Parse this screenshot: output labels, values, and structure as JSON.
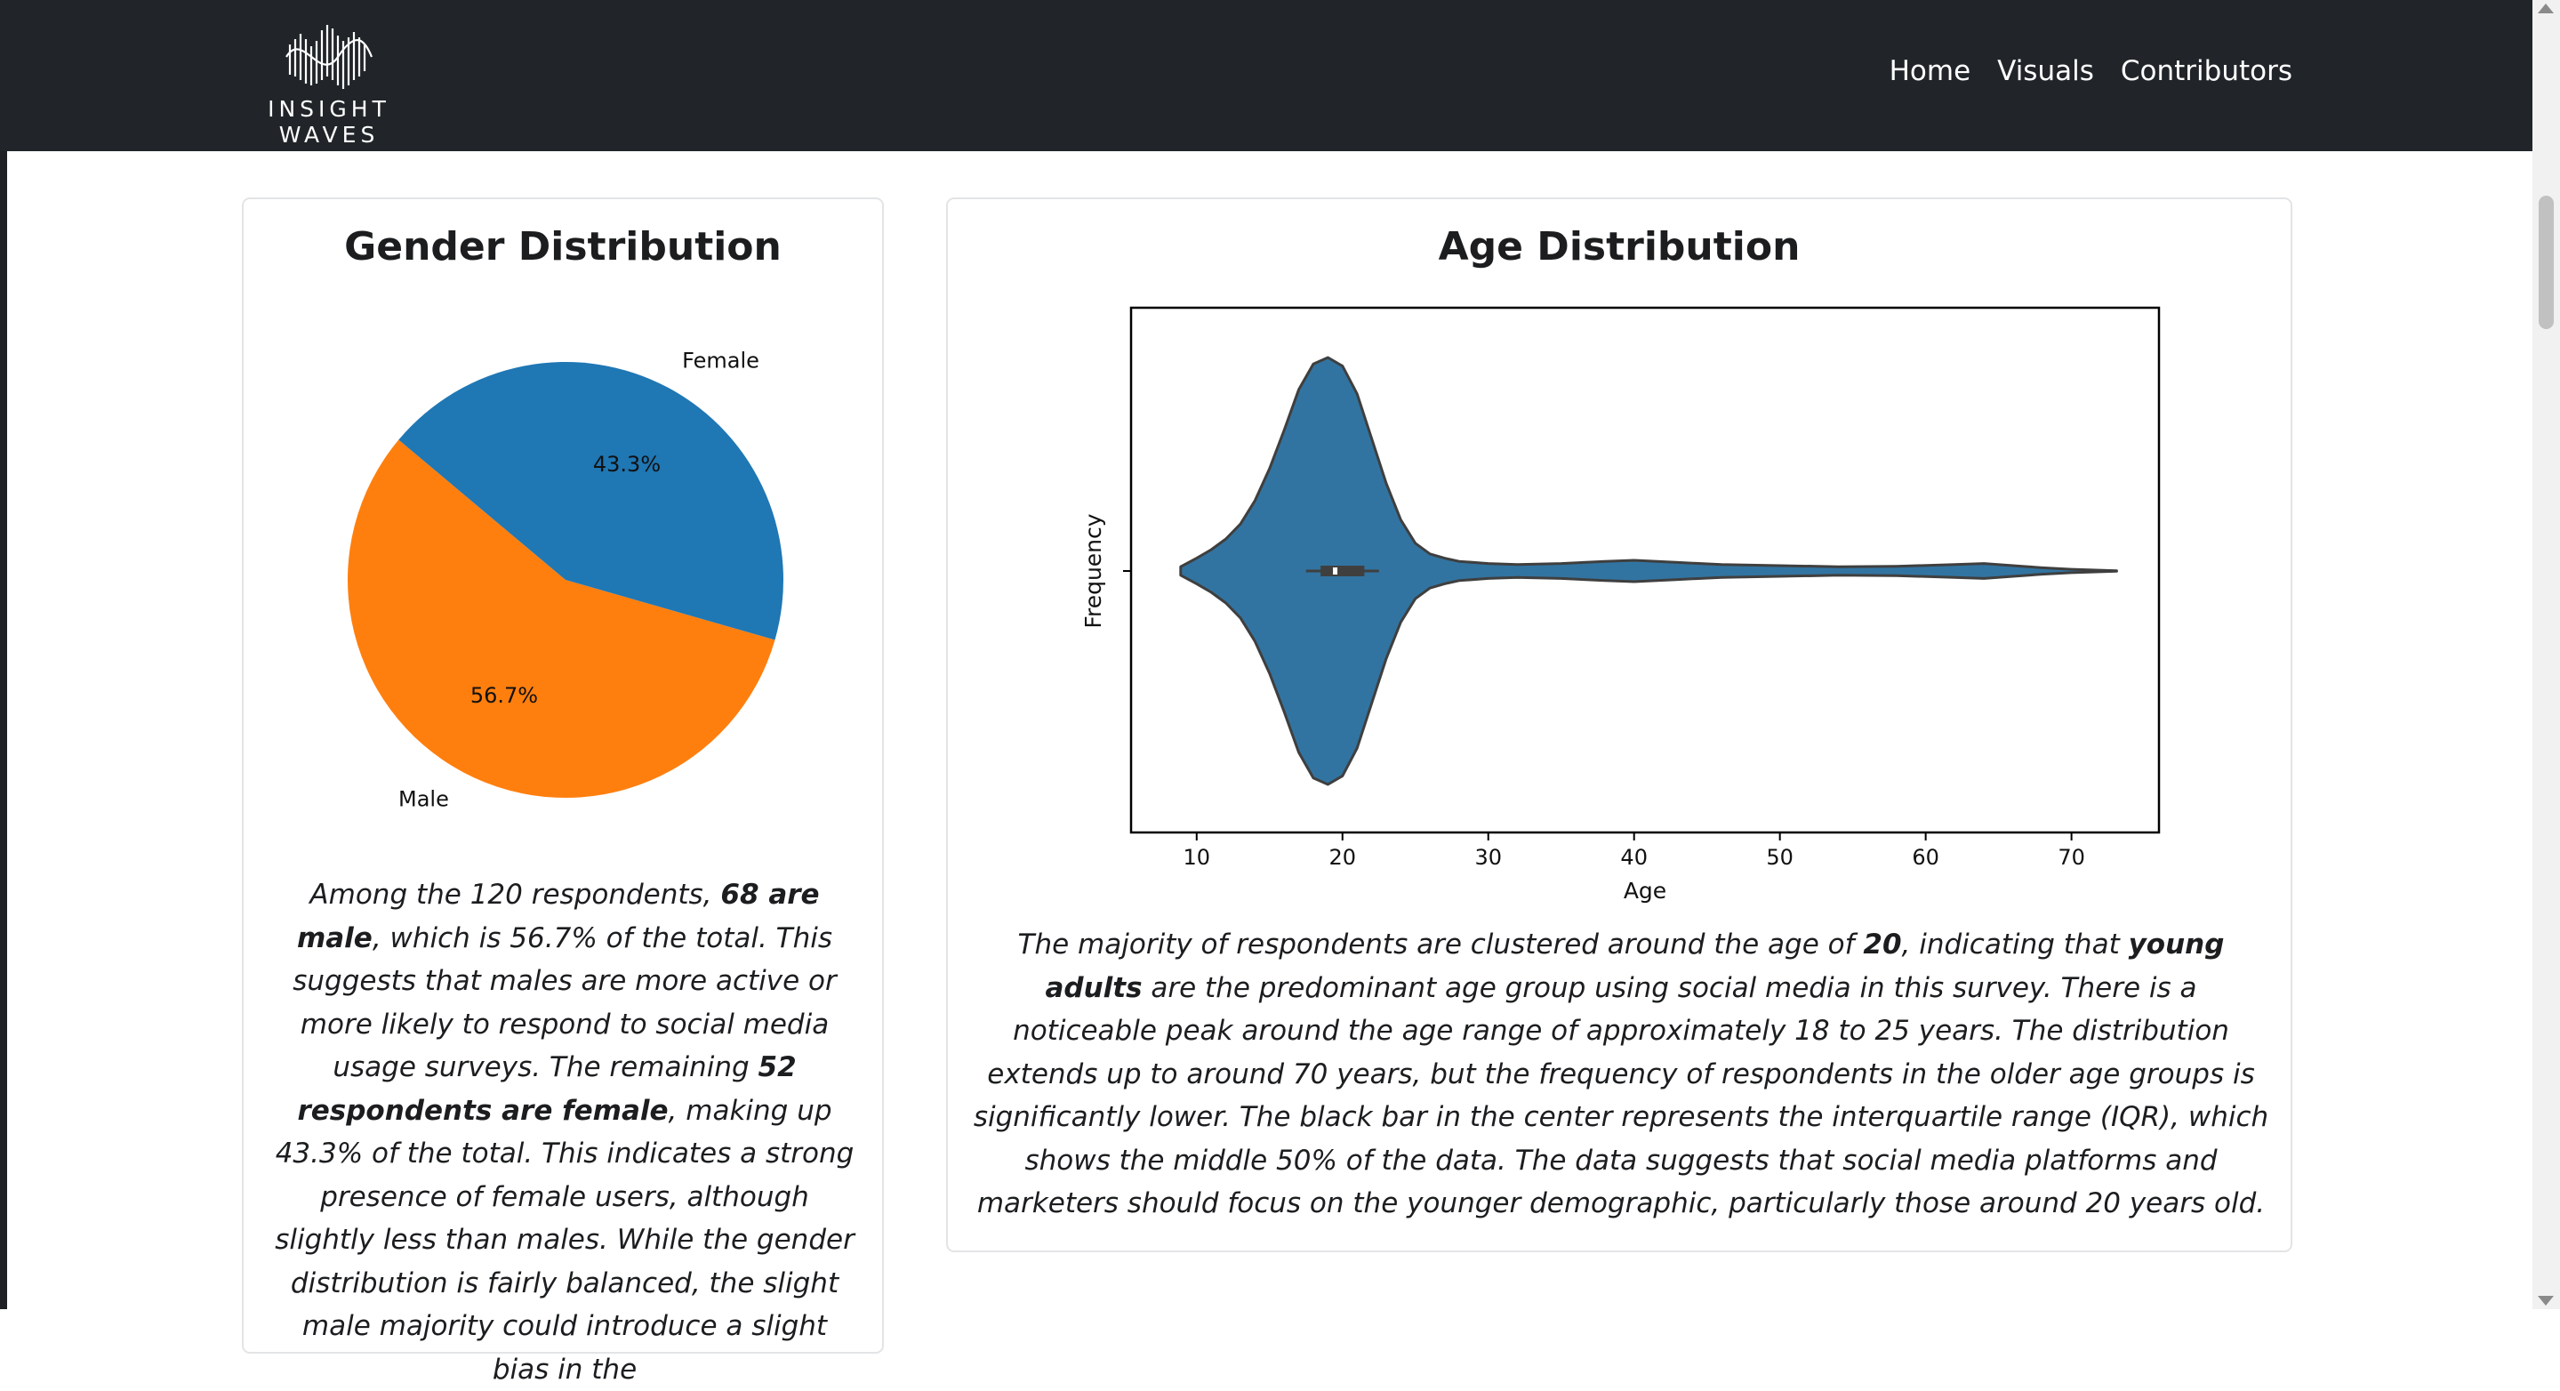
{
  "navbar": {
    "logo_text": "INSIGHT WAVES",
    "links": [
      "Home",
      "Visuals",
      "Contributors"
    ]
  },
  "gender_card": {
    "title": "Gender Distribution",
    "description": [
      {
        "text": "Among the 120 respondents, ",
        "bold": false
      },
      {
        "text": "68 are male",
        "bold": true
      },
      {
        "text": ", which is 56.7% of the total. This suggests that males are more active or more likely to respond to social media usage surveys. The remaining ",
        "bold": false
      },
      {
        "text": "52 respondents are female",
        "bold": true
      },
      {
        "text": ", making up 43.3% of the total. This indicates a strong presence of female users, although slightly less than males. While the gender distribution is fairly balanced, the slight male majority could introduce a slight bias in the",
        "bold": false
      }
    ]
  },
  "age_card": {
    "title": "Age Distribution",
    "description": [
      {
        "text": "The majority of respondents are clustered around the age of ",
        "bold": false
      },
      {
        "text": "20",
        "bold": true
      },
      {
        "text": ", indicating that ",
        "bold": false
      },
      {
        "text": "young adults",
        "bold": true
      },
      {
        "text": " are the predominant age group using social media in this survey. There is a noticeable peak around the age range of approximately 18 to 25 years. The distribution extends up to around 70 years, but the frequency of respondents in the older age groups is significantly lower. The black bar in the center represents the interquartile range (IQR), which shows the middle 50% of the data. The data suggests that social media platforms and marketers should focus on the younger demographic, particularly those around 20 years old.",
        "bold": false
      }
    ]
  },
  "chart_data": [
    {
      "type": "pie",
      "title": "",
      "categories": [
        "Male",
        "Female"
      ],
      "values": [
        68,
        52
      ],
      "percent_labels": [
        "56.7%",
        "43.3%"
      ],
      "colors": [
        "#ff7f0e",
        "#1f77b4"
      ],
      "start_angle_deg": 140
    },
    {
      "type": "violin",
      "title": "",
      "xlabel": "Age",
      "ylabel": "Frequency",
      "xlim": [
        5.5,
        76
      ],
      "xticks": [
        10,
        20,
        30,
        40,
        50,
        60,
        70
      ],
      "color": "#3274a1",
      "density_curve": {
        "x": [
          8.9,
          10,
          11,
          12,
          13,
          14,
          15,
          16,
          17,
          18,
          19,
          20,
          21,
          22,
          23,
          24,
          25,
          26,
          27,
          28,
          30,
          32,
          35,
          38,
          40,
          43,
          46,
          50,
          54,
          58,
          62,
          64,
          66,
          68,
          70,
          73.1
        ],
        "density": [
          0.02,
          0.06,
          0.1,
          0.15,
          0.22,
          0.33,
          0.48,
          0.66,
          0.85,
          0.97,
          1.0,
          0.96,
          0.83,
          0.62,
          0.41,
          0.24,
          0.13,
          0.08,
          0.06,
          0.045,
          0.035,
          0.03,
          0.035,
          0.045,
          0.05,
          0.04,
          0.03,
          0.025,
          0.02,
          0.022,
          0.03,
          0.035,
          0.025,
          0.015,
          0.008,
          0.001
        ]
      },
      "box": {
        "q1": 18.5,
        "median": 19.5,
        "q3": 21.5,
        "whisker_low": 17.5,
        "whisker_high": 22.5
      }
    }
  ]
}
